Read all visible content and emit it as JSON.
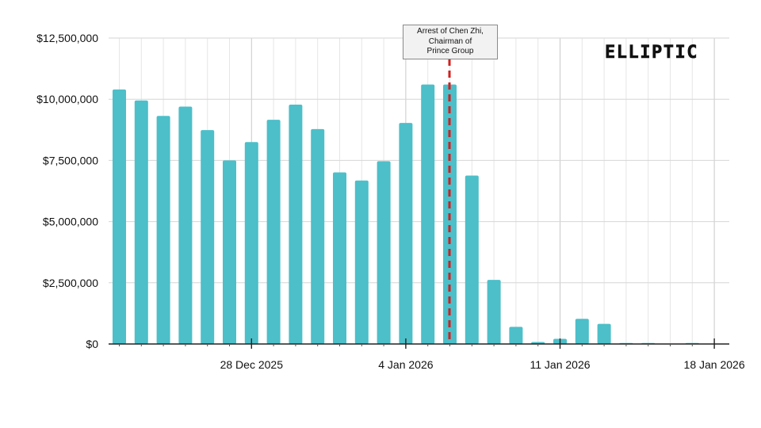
{
  "logo": {
    "text": "ELLIPTIC"
  },
  "annotation": {
    "line1": "Arrest of Chen Zhi,",
    "line2": "Chairman of",
    "line3": "Prince Group",
    "date_index": 15,
    "line_color": "#d11f1f"
  },
  "colors": {
    "bar": "#4cbfc9",
    "grid": "#d6d6d6",
    "axis": "#222222"
  },
  "chart_data": {
    "type": "bar",
    "title": "",
    "xlabel": "",
    "ylabel": "",
    "ylim": [
      0,
      12500000
    ],
    "yticks": [
      "$0",
      "$2,500,000",
      "$5,000,000",
      "$7,500,000",
      "$10,000,000",
      "$12,500,000"
    ],
    "ytick_values": [
      0,
      2500000,
      5000000,
      7500000,
      10000000,
      12500000
    ],
    "xticks": [
      {
        "label": "28 Dec 2025",
        "index": 6
      },
      {
        "label": "4 Jan 2026",
        "index": 13
      },
      {
        "label": "11 Jan 2026",
        "index": 20
      },
      {
        "label": "18 Jan 2026",
        "index": 27
      }
    ],
    "grid": true,
    "categories": [
      "2025-12-22",
      "2025-12-23",
      "2025-12-24",
      "2025-12-25",
      "2025-12-26",
      "2025-12-27",
      "2025-12-28",
      "2025-12-29",
      "2025-12-30",
      "2025-12-31",
      "2026-01-01",
      "2026-01-02",
      "2026-01-03",
      "2026-01-04",
      "2026-01-05",
      "2026-01-06",
      "2026-01-07",
      "2026-01-08",
      "2026-01-09",
      "2026-01-10",
      "2026-01-11",
      "2026-01-12",
      "2026-01-13",
      "2026-01-14",
      "2026-01-15",
      "2026-01-16",
      "2026-01-17",
      "2026-01-18"
    ],
    "values": [
      10400000,
      9950000,
      9320000,
      9700000,
      8740000,
      7500000,
      8250000,
      9160000,
      9780000,
      8780000,
      7010000,
      6680000,
      7470000,
      9030000,
      10600000,
      10600000,
      6880000,
      2620000,
      700000,
      80000,
      210000,
      1030000,
      820000,
      40000,
      40000,
      10000,
      40000,
      10000
    ]
  }
}
